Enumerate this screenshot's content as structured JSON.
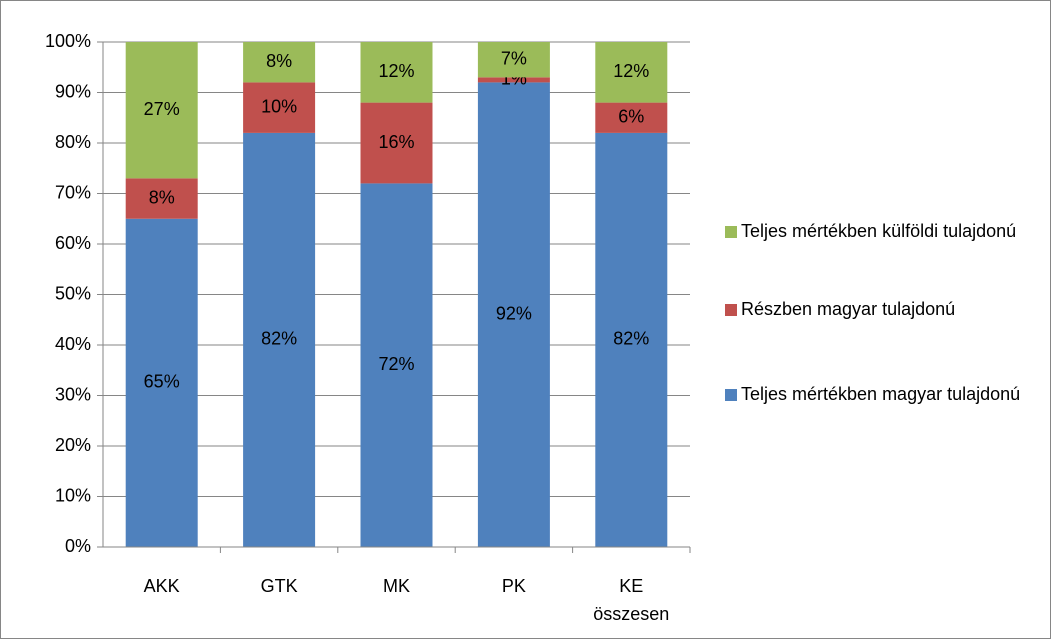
{
  "chart_data": {
    "type": "stacked_bar",
    "categories": [
      "AKK",
      "GTK",
      "MK",
      "PK",
      "KE összesen"
    ],
    "series": [
      {
        "name": "Teljes mértékben magyar tulajdonú",
        "color": "#4f81bd",
        "values": [
          65,
          82,
          72,
          92,
          82
        ],
        "value_labels": [
          "65%",
          "82%",
          "72%",
          "92%",
          "82%"
        ]
      },
      {
        "name": "Részben magyar tulajdonú",
        "color": "#c0504d",
        "values": [
          8,
          10,
          16,
          1,
          6
        ],
        "value_labels": [
          "8%",
          "10%",
          "16%",
          "1%",
          "6%"
        ]
      },
      {
        "name": "Teljes mértékben külföldi tulajdonú",
        "color": "#9bbb59",
        "values": [
          27,
          8,
          12,
          7,
          12
        ],
        "value_labels": [
          "27%",
          "8%",
          "12%",
          "7%",
          "12%"
        ]
      }
    ],
    "ylim": [
      0,
      100
    ],
    "yticks": [
      {
        "value": 0,
        "label": "0%"
      },
      {
        "value": 10,
        "label": "10%"
      },
      {
        "value": 20,
        "label": "20%"
      },
      {
        "value": 30,
        "label": "30%"
      },
      {
        "value": 40,
        "label": "40%"
      },
      {
        "value": 50,
        "label": "50%"
      },
      {
        "value": 60,
        "label": "60%"
      },
      {
        "value": 70,
        "label": "70%"
      },
      {
        "value": 80,
        "label": "80%"
      },
      {
        "value": 90,
        "label": "90%"
      },
      {
        "value": 100,
        "label": "100%"
      }
    ],
    "grid": true,
    "legend": "right"
  }
}
